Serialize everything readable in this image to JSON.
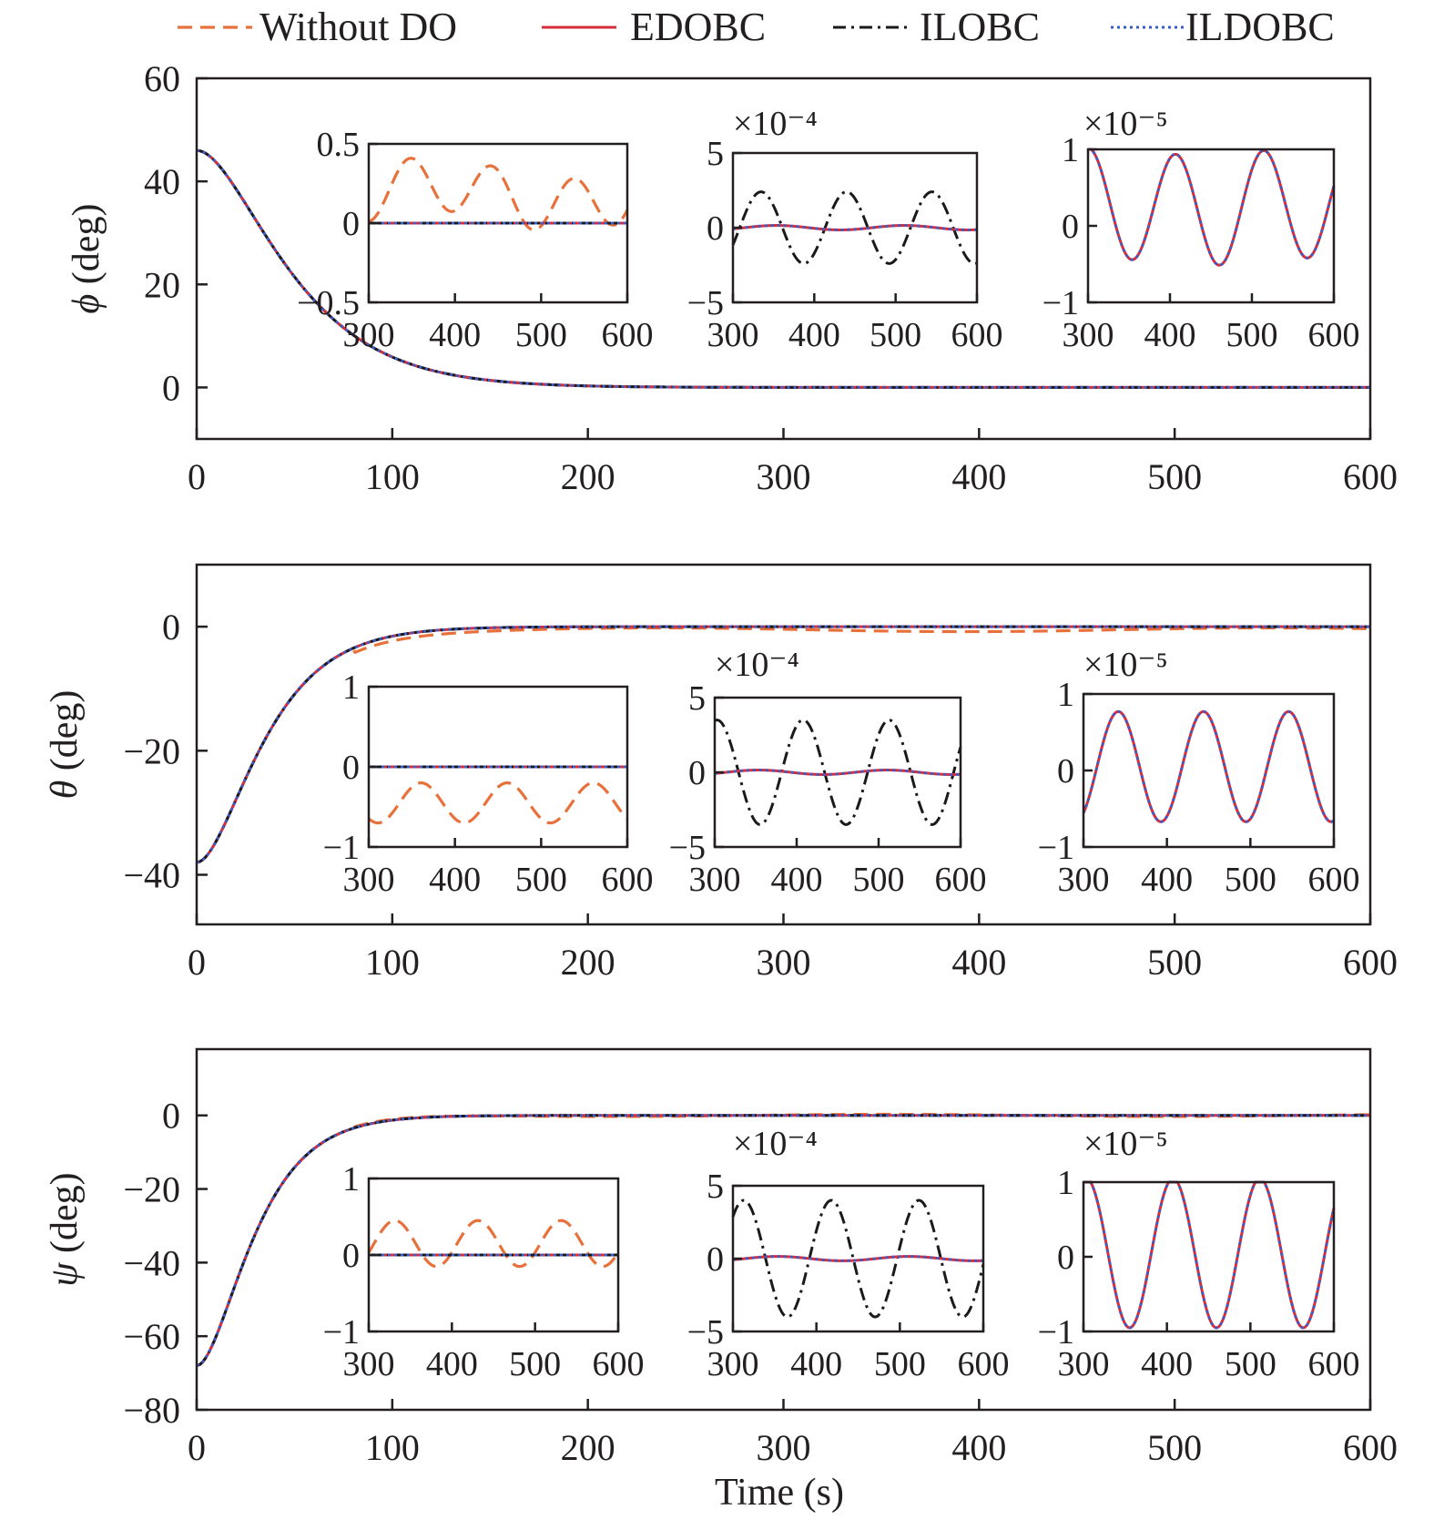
{
  "colors": {
    "without_do": "#e8703a",
    "edobc": "#d62d3b",
    "ilobc": "#1a1a1a",
    "ildobc": "#3b5dc9",
    "axis": "#231f20"
  },
  "legend": [
    {
      "label": "Without DO",
      "style": "dashed",
      "color_key": "without_do"
    },
    {
      "label": "EDOBC",
      "style": "solid",
      "color_key": "edobc"
    },
    {
      "label": "ILOBC",
      "style": "dashdot",
      "color_key": "ilobc"
    },
    {
      "label": "ILDOBC",
      "style": "dotted",
      "color_key": "ildobc"
    }
  ],
  "xlabel": "Time (s)",
  "chart_data": [
    {
      "type": "line",
      "id": "phi",
      "ylabel_symbol": "ϕ",
      "ylabel_unit": "(deg)",
      "xlim": [
        0,
        600
      ],
      "ylim": [
        -10,
        60
      ],
      "xticks": [
        0,
        100,
        200,
        300,
        400,
        500,
        600
      ],
      "yticks": [
        0,
        20,
        40,
        60
      ],
      "initial": 46,
      "tau": 28,
      "insets": [
        {
          "kind": "without",
          "xlim": [
            300,
            600
          ],
          "ylim": [
            -0.5,
            0.5
          ],
          "yticks": [
            -0.5,
            0,
            0.5
          ],
          "ytick_labels": [
            "−0.5",
            "0",
            "0.5"
          ],
          "xticks": [
            300,
            400,
            500,
            600
          ],
          "exponent": ""
        },
        {
          "kind": "ilobc",
          "xlim": [
            300,
            600
          ],
          "ylim": [
            -5,
            5
          ],
          "yticks": [
            -5,
            0,
            5
          ],
          "ytick_labels": [
            "−5",
            "0",
            "5"
          ],
          "xticks": [
            300,
            400,
            500,
            600
          ],
          "exponent": "×10⁻⁴"
        },
        {
          "kind": "ildobc",
          "xlim": [
            300,
            600
          ],
          "ylim": [
            -1,
            1
          ],
          "yticks": [
            -1,
            0,
            1
          ],
          "ytick_labels": [
            "−1",
            "0",
            "1"
          ],
          "xticks": [
            300,
            400,
            500,
            600
          ],
          "exponent": "×10⁻⁵"
        }
      ]
    },
    {
      "type": "line",
      "id": "theta",
      "ylabel_symbol": "θ",
      "ylabel_unit": "(deg)",
      "xlim": [
        0,
        600
      ],
      "ylim": [
        -48,
        10
      ],
      "xticks": [
        0,
        100,
        200,
        300,
        400,
        500,
        600
      ],
      "yticks": [
        -40,
        -20,
        0
      ],
      "initial": -38,
      "tau": 20,
      "insets": [
        {
          "kind": "without",
          "xlim": [
            300,
            600
          ],
          "ylim": [
            -1,
            1
          ],
          "yticks": [
            -1,
            0,
            1
          ],
          "ytick_labels": [
            "−1",
            "0",
            "1"
          ],
          "xticks": [
            300,
            400,
            500,
            600
          ],
          "exponent": ""
        },
        {
          "kind": "ilobc",
          "xlim": [
            300,
            600
          ],
          "ylim": [
            -5,
            5
          ],
          "yticks": [
            -5,
            0,
            5
          ],
          "ytick_labels": [
            "−5",
            "0",
            "5"
          ],
          "xticks": [
            300,
            400,
            500,
            600
          ],
          "exponent": "×10⁻⁴"
        },
        {
          "kind": "ildobc",
          "xlim": [
            300,
            600
          ],
          "ylim": [
            -1,
            1
          ],
          "yticks": [
            -1,
            0,
            1
          ],
          "ytick_labels": [
            "−1",
            "0",
            "1"
          ],
          "xticks": [
            300,
            400,
            500,
            600
          ],
          "exponent": "×10⁻⁵"
        }
      ]
    },
    {
      "type": "line",
      "id": "psi",
      "ylabel_symbol": "ψ",
      "ylabel_unit": "(deg)",
      "xlim": [
        0,
        600
      ],
      "ylim": [
        -80,
        18
      ],
      "xticks": [
        0,
        100,
        200,
        300,
        400,
        500,
        600
      ],
      "yticks": [
        -80,
        -60,
        -40,
        -20,
        0
      ],
      "initial": -68,
      "tau": 17,
      "insets": [
        {
          "kind": "without",
          "xlim": [
            300,
            600
          ],
          "ylim": [
            -1,
            1
          ],
          "yticks": [
            -1,
            0,
            1
          ],
          "ytick_labels": [
            "−1",
            "0",
            "1"
          ],
          "xticks": [
            300,
            400,
            500,
            600
          ],
          "exponent": ""
        },
        {
          "kind": "ilobc",
          "xlim": [
            300,
            600
          ],
          "ylim": [
            -5,
            5
          ],
          "yticks": [
            -5,
            0,
            5
          ],
          "ytick_labels": [
            "−5",
            "0",
            "5"
          ],
          "xticks": [
            300,
            400,
            500,
            600
          ],
          "exponent": "×10⁻⁴"
        },
        {
          "kind": "ildobc",
          "xlim": [
            300,
            600
          ],
          "ylim": [
            -1,
            1
          ],
          "yticks": [
            -1,
            0,
            1
          ],
          "ytick_labels": [
            "−1",
            "0",
            "1"
          ],
          "xticks": [
            300,
            400,
            500,
            600
          ],
          "exponent": "×10⁻⁵"
        }
      ]
    }
  ]
}
